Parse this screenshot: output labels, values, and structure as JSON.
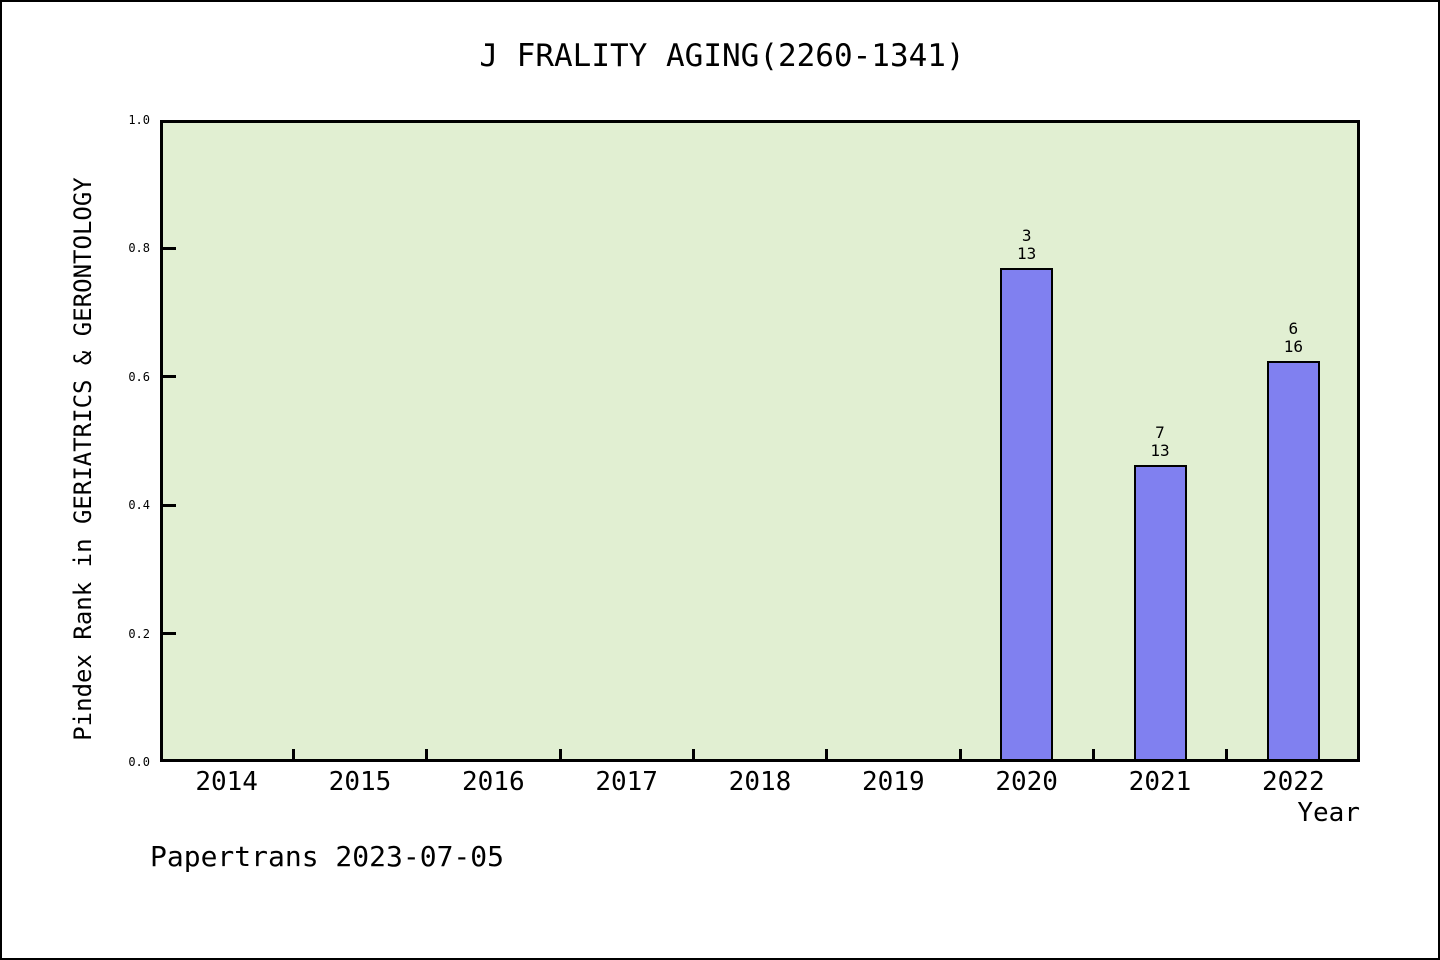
{
  "footer": "Papertrans 2023-07-05",
  "chart_data": {
    "type": "bar",
    "title": "J FRALITY AGING(2260-1341)",
    "xlabel": "Year",
    "ylabel": "Pindex Rank in GERIATRICS & GERONTOLOGY",
    "categories": [
      "2014",
      "2015",
      "2016",
      "2017",
      "2018",
      "2019",
      "2020",
      "2021",
      "2022"
    ],
    "ylim": [
      0.0,
      1.0
    ],
    "yticks": [
      0.0,
      0.2,
      0.4,
      0.6,
      0.8,
      1.0
    ],
    "grid": false,
    "legend_position": "none",
    "bars": [
      {
        "category": "2020",
        "rank": 3,
        "total": 13,
        "value": 0.769
      },
      {
        "category": "2021",
        "rank": 7,
        "total": 13,
        "value": 0.462
      },
      {
        "category": "2022",
        "rank": 6,
        "total": 16,
        "value": 0.625
      }
    ],
    "colors": {
      "bar_fill": "#8080f0",
      "bar_border": "#000000",
      "plot_bg": "#e1efd2",
      "text": "#000000",
      "page_bg": "#ffffff"
    }
  }
}
